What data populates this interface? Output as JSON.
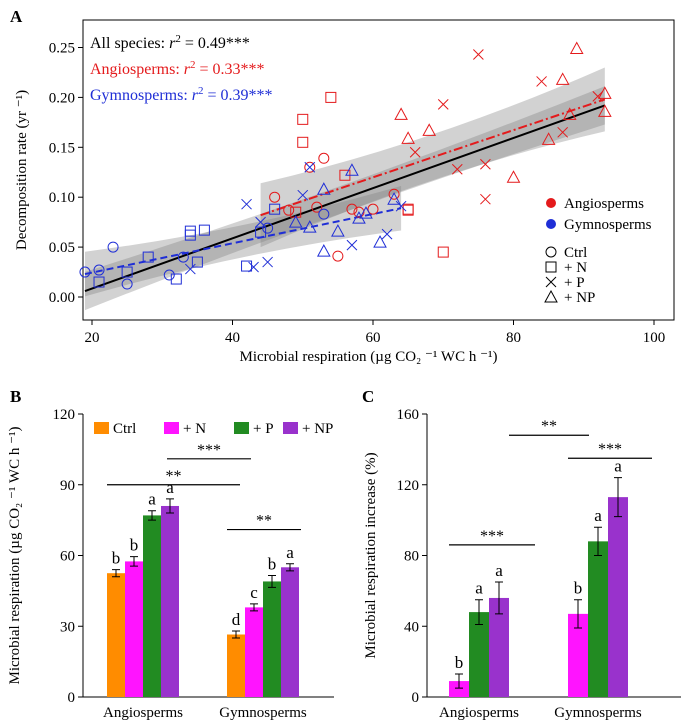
{
  "chart_data": [
    {
      "panel_label": "A",
      "type": "scatter",
      "xlabel": "Microbial respiration (µg CO₂ ⁻¹ WC h ⁻¹)",
      "ylabel": "Decomposition rate (yr ⁻¹)",
      "xlim": [
        15,
        100
      ],
      "ylim": [
        -0.015,
        0.265
      ],
      "x_ticks": [
        "20",
        "40",
        "60",
        "80",
        "100"
      ],
      "y_ticks": [
        "0.00",
        "0.05",
        "0.10",
        "0.15",
        "0.20",
        "0.25"
      ],
      "annotations": [
        {
          "group": "All species",
          "prefix": "All species: ",
          "r2_label": "r",
          "sup": "2",
          "value": " = 0.49***",
          "color": "#000000"
        },
        {
          "group": "Angiosperms",
          "prefix": "Angiosperms: ",
          "r2_label": "r",
          "sup": "2",
          "value": " = 0.33***",
          "color": "#e41a1c"
        },
        {
          "group": "Gymnosperms",
          "prefix": "Gymnosperms: ",
          "r2_label": "r",
          "sup": "2",
          "value": " = 0.39***",
          "color": "#1f2ed6"
        }
      ],
      "legend_placement": "right",
      "legend_groups": [
        {
          "name": "Angiosperms",
          "color": "#e41a1c"
        },
        {
          "name": "Gymnosperms",
          "color": "#1f2ed6"
        }
      ],
      "legend_shapes": [
        {
          "name": "Ctrl",
          "shape": "circle"
        },
        {
          "name": "+ N",
          "shape": "square"
        },
        {
          "name": "+ P",
          "shape": "cross"
        },
        {
          "name": "+ NP",
          "shape": "triangle"
        }
      ],
      "fit_lines": [
        {
          "group": "All species",
          "x": [
            19,
            93
          ],
          "y": [
            0.006,
            0.192
          ],
          "ci": 0.012,
          "color": "#000000",
          "style": "solid"
        },
        {
          "group": "Angiosperms",
          "x": [
            44,
            93
          ],
          "y": [
            0.082,
            0.198
          ],
          "ci": 0.02,
          "color": "#e41a1c",
          "style": "dashdot"
        },
        {
          "group": "Gymnosperms",
          "x": [
            19,
            64
          ],
          "y": [
            0.023,
            0.089
          ],
          "ci": 0.014,
          "color": "#1f2ed6",
          "style": "dashed"
        }
      ],
      "points": [
        {
          "x": 51,
          "y": 0.13,
          "group": "Angiosperms",
          "treatment": "Ctrl"
        },
        {
          "x": 52,
          "y": 0.09,
          "group": "Angiosperms",
          "treatment": "Ctrl"
        },
        {
          "x": 53,
          "y": 0.139,
          "group": "Angiosperms",
          "treatment": "Ctrl"
        },
        {
          "x": 55,
          "y": 0.041,
          "group": "Angiosperms",
          "treatment": "Ctrl"
        },
        {
          "x": 57,
          "y": 0.088,
          "group": "Angiosperms",
          "treatment": "Ctrl"
        },
        {
          "x": 58,
          "y": 0.085,
          "group": "Angiosperms",
          "treatment": "Ctrl"
        },
        {
          "x": 60,
          "y": 0.088,
          "group": "Angiosperms",
          "treatment": "Ctrl"
        },
        {
          "x": 63,
          "y": 0.103,
          "group": "Angiosperms",
          "treatment": "Ctrl"
        },
        {
          "x": 46,
          "y": 0.1,
          "group": "Angiosperms",
          "treatment": "Ctrl"
        },
        {
          "x": 48,
          "y": 0.087,
          "group": "Angiosperms",
          "treatment": "Ctrl"
        },
        {
          "x": 50,
          "y": 0.155,
          "group": "Angiosperms",
          "treatment": "+ N"
        },
        {
          "x": 50,
          "y": 0.178,
          "group": "Angiosperms",
          "treatment": "+ N"
        },
        {
          "x": 54,
          "y": 0.2,
          "group": "Angiosperms",
          "treatment": "+ N"
        },
        {
          "x": 56,
          "y": 0.122,
          "group": "Angiosperms",
          "treatment": "+ N"
        },
        {
          "x": 65,
          "y": 0.087,
          "group": "Angiosperms",
          "treatment": "+ N"
        },
        {
          "x": 65,
          "y": 0.088,
          "group": "Angiosperms",
          "treatment": "+ N"
        },
        {
          "x": 70,
          "y": 0.045,
          "group": "Angiosperms",
          "treatment": "+ N"
        },
        {
          "x": 49,
          "y": 0.085,
          "group": "Angiosperms",
          "treatment": "+ N"
        },
        {
          "x": 66,
          "y": 0.145,
          "group": "Angiosperms",
          "treatment": "+ P"
        },
        {
          "x": 70,
          "y": 0.193,
          "group": "Angiosperms",
          "treatment": "+ P"
        },
        {
          "x": 72,
          "y": 0.128,
          "group": "Angiosperms",
          "treatment": "+ P"
        },
        {
          "x": 75,
          "y": 0.243,
          "group": "Angiosperms",
          "treatment": "+ P"
        },
        {
          "x": 76,
          "y": 0.098,
          "group": "Angiosperms",
          "treatment": "+ P"
        },
        {
          "x": 76,
          "y": 0.133,
          "group": "Angiosperms",
          "treatment": "+ P"
        },
        {
          "x": 84,
          "y": 0.216,
          "group": "Angiosperms",
          "treatment": "+ P"
        },
        {
          "x": 87,
          "y": 0.165,
          "group": "Angiosperms",
          "treatment": "+ P"
        },
        {
          "x": 92,
          "y": 0.201,
          "group": "Angiosperms",
          "treatment": "+ P"
        },
        {
          "x": 64,
          "y": 0.183,
          "group": "Angiosperms",
          "treatment": "+ NP"
        },
        {
          "x": 65,
          "y": 0.159,
          "group": "Angiosperms",
          "treatment": "+ NP"
        },
        {
          "x": 68,
          "y": 0.167,
          "group": "Angiosperms",
          "treatment": "+ NP"
        },
        {
          "x": 80,
          "y": 0.12,
          "group": "Angiosperms",
          "treatment": "+ NP"
        },
        {
          "x": 85,
          "y": 0.158,
          "group": "Angiosperms",
          "treatment": "+ NP"
        },
        {
          "x": 87,
          "y": 0.218,
          "group": "Angiosperms",
          "treatment": "+ NP"
        },
        {
          "x": 89,
          "y": 0.249,
          "group": "Angiosperms",
          "treatment": "+ NP"
        },
        {
          "x": 93,
          "y": 0.186,
          "group": "Angiosperms",
          "treatment": "+ NP"
        },
        {
          "x": 93,
          "y": 0.204,
          "group": "Angiosperms",
          "treatment": "+ NP"
        },
        {
          "x": 88,
          "y": 0.183,
          "group": "Angiosperms",
          "treatment": "+ NP"
        },
        {
          "x": 19,
          "y": 0.025,
          "group": "Gymnosperms",
          "treatment": "Ctrl"
        },
        {
          "x": 21,
          "y": 0.027,
          "group": "Gymnosperms",
          "treatment": "Ctrl"
        },
        {
          "x": 23,
          "y": 0.05,
          "group": "Gymnosperms",
          "treatment": "Ctrl"
        },
        {
          "x": 25,
          "y": 0.013,
          "group": "Gymnosperms",
          "treatment": "Ctrl"
        },
        {
          "x": 31,
          "y": 0.022,
          "group": "Gymnosperms",
          "treatment": "Ctrl"
        },
        {
          "x": 33,
          "y": 0.04,
          "group": "Gymnosperms",
          "treatment": "Ctrl"
        },
        {
          "x": 45,
          "y": 0.069,
          "group": "Gymnosperms",
          "treatment": "Ctrl"
        },
        {
          "x": 53,
          "y": 0.083,
          "group": "Gymnosperms",
          "treatment": "Ctrl"
        },
        {
          "x": 21,
          "y": 0.015,
          "group": "Gymnosperms",
          "treatment": "+ N"
        },
        {
          "x": 25,
          "y": 0.025,
          "group": "Gymnosperms",
          "treatment": "+ N"
        },
        {
          "x": 28,
          "y": 0.04,
          "group": "Gymnosperms",
          "treatment": "+ N"
        },
        {
          "x": 32,
          "y": 0.018,
          "group": "Gymnosperms",
          "treatment": "+ N"
        },
        {
          "x": 34,
          "y": 0.062,
          "group": "Gymnosperms",
          "treatment": "+ N"
        },
        {
          "x": 34,
          "y": 0.066,
          "group": "Gymnosperms",
          "treatment": "+ N"
        },
        {
          "x": 35,
          "y": 0.035,
          "group": "Gymnosperms",
          "treatment": "+ N"
        },
        {
          "x": 36,
          "y": 0.067,
          "group": "Gymnosperms",
          "treatment": "+ N"
        },
        {
          "x": 42,
          "y": 0.031,
          "group": "Gymnosperms",
          "treatment": "+ N"
        },
        {
          "x": 44,
          "y": 0.065,
          "group": "Gymnosperms",
          "treatment": "+ N"
        },
        {
          "x": 46,
          "y": 0.088,
          "group": "Gymnosperms",
          "treatment": "+ N"
        },
        {
          "x": 34,
          "y": 0.028,
          "group": "Gymnosperms",
          "treatment": "+ P"
        },
        {
          "x": 42,
          "y": 0.093,
          "group": "Gymnosperms",
          "treatment": "+ P"
        },
        {
          "x": 43,
          "y": 0.03,
          "group": "Gymnosperms",
          "treatment": "+ P"
        },
        {
          "x": 44,
          "y": 0.075,
          "group": "Gymnosperms",
          "treatment": "+ P"
        },
        {
          "x": 45,
          "y": 0.035,
          "group": "Gymnosperms",
          "treatment": "+ P"
        },
        {
          "x": 50,
          "y": 0.102,
          "group": "Gymnosperms",
          "treatment": "+ P"
        },
        {
          "x": 51,
          "y": 0.13,
          "group": "Gymnosperms",
          "treatment": "+ P"
        },
        {
          "x": 57,
          "y": 0.052,
          "group": "Gymnosperms",
          "treatment": "+ P"
        },
        {
          "x": 62,
          "y": 0.063,
          "group": "Gymnosperms",
          "treatment": "+ P"
        },
        {
          "x": 64,
          "y": 0.091,
          "group": "Gymnosperms",
          "treatment": "+ P"
        },
        {
          "x": 49,
          "y": 0.075,
          "group": "Gymnosperms",
          "treatment": "+ NP"
        },
        {
          "x": 51,
          "y": 0.07,
          "group": "Gymnosperms",
          "treatment": "+ NP"
        },
        {
          "x": 53,
          "y": 0.046,
          "group": "Gymnosperms",
          "treatment": "+ NP"
        },
        {
          "x": 53,
          "y": 0.108,
          "group": "Gymnosperms",
          "treatment": "+ NP"
        },
        {
          "x": 55,
          "y": 0.066,
          "group": "Gymnosperms",
          "treatment": "+ NP"
        },
        {
          "x": 57,
          "y": 0.127,
          "group": "Gymnosperms",
          "treatment": "+ NP"
        },
        {
          "x": 58,
          "y": 0.079,
          "group": "Gymnosperms",
          "treatment": "+ NP"
        },
        {
          "x": 59,
          "y": 0.084,
          "group": "Gymnosperms",
          "treatment": "+ NP"
        },
        {
          "x": 61,
          "y": 0.055,
          "group": "Gymnosperms",
          "treatment": "+ NP"
        },
        {
          "x": 63,
          "y": 0.098,
          "group": "Gymnosperms",
          "treatment": "+ NP"
        }
      ]
    },
    {
      "panel_label": "B",
      "type": "bar",
      "ylabel": "Microbial respiration (µg CO₂ ⁻¹ WC h ⁻¹)",
      "ylim": [
        0,
        120
      ],
      "y_ticks": [
        "0",
        "30",
        "60",
        "90",
        "120"
      ],
      "categories": [
        "Angiosperms",
        "Gymnosperms"
      ],
      "legend_placement": "top-left",
      "series": [
        {
          "name": "Ctrl",
          "color": "#ff8c00",
          "values": [
            52.5,
            26.5
          ],
          "errors": [
            1.5,
            1.5
          ],
          "letters": [
            "b",
            "d"
          ]
        },
        {
          "name": "+ N",
          "color": "#ff14ff",
          "values": [
            57.5,
            38.0
          ],
          "errors": [
            2.0,
            1.5
          ],
          "letters": [
            "b",
            "c"
          ]
        },
        {
          "name": "+ P",
          "color": "#228b22",
          "values": [
            77.0,
            49.0
          ],
          "errors": [
            2.0,
            2.5
          ],
          "letters": [
            "a",
            "b"
          ]
        },
        {
          "name": "+ NP",
          "color": "#9932cc",
          "values": [
            81.0,
            55.0
          ],
          "errors": [
            3.0,
            1.5
          ],
          "letters": [
            "a",
            "a"
          ]
        }
      ],
      "significance": [
        {
          "label": "**",
          "from_category": 0,
          "to_category": 1,
          "value": 90,
          "span": "angio-to-gymno-start"
        },
        {
          "label": "***",
          "from_category": 0,
          "to_category": 1,
          "value": 101,
          "span": "angio-np-to-gymno-p"
        },
        {
          "label": "**",
          "from_category": 1,
          "to_category": 1,
          "value": 71,
          "span": "gymno-all"
        }
      ]
    },
    {
      "panel_label": "C",
      "type": "bar",
      "ylabel": "Microbial respiration increase (%)",
      "ylim": [
        0,
        160
      ],
      "y_ticks": [
        "0",
        "40",
        "80",
        "120",
        "160"
      ],
      "categories": [
        "Angiosperms",
        "Gymnosperms"
      ],
      "series": [
        {
          "name": "+ N",
          "color": "#ff14ff",
          "values": [
            9.0,
            47.0
          ],
          "errors": [
            4.0,
            8.0
          ],
          "letters": [
            "b",
            "b"
          ]
        },
        {
          "name": "+ P",
          "color": "#228b22",
          "values": [
            48.0,
            88.0
          ],
          "errors": [
            7.0,
            8.0
          ],
          "letters": [
            "a",
            "a"
          ]
        },
        {
          "name": "+ NP",
          "color": "#9932cc",
          "values": [
            56.0,
            113.0
          ],
          "errors": [
            9.0,
            11.0
          ],
          "letters": [
            "a",
            "a"
          ]
        }
      ],
      "significance": [
        {
          "label": "***",
          "from_category": 0,
          "to_category": 0,
          "value": 86
        },
        {
          "label": "**",
          "from_category": 0,
          "to_category": 1,
          "value": 148
        },
        {
          "label": "***",
          "from_category": 1,
          "to_category": 1,
          "value": 135
        }
      ]
    }
  ]
}
